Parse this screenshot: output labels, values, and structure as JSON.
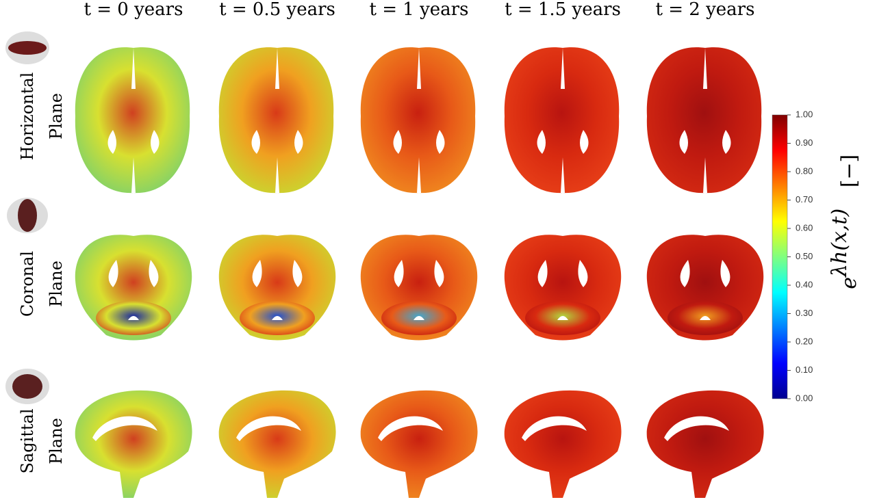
{
  "columns": [
    "t = 0 years",
    "t = 0.5 years",
    "t = 1 years",
    "t = 1.5 years",
    "t = 2 years"
  ],
  "rows": [
    [
      "Horizontal",
      "Plane"
    ],
    [
      "Coronal",
      "Plane"
    ],
    [
      "Sagittal",
      "Plane"
    ]
  ],
  "colorbar": {
    "range": [
      0,
      1
    ],
    "ticks": [
      {
        "value": 0,
        "label": "0.00"
      },
      {
        "value": 0.1,
        "label": "0.10"
      },
      {
        "value": 0.2,
        "label": "0.20"
      },
      {
        "value": 0.3,
        "label": "0.30"
      },
      {
        "value": 0.4,
        "label": "0.40"
      },
      {
        "value": 0.5,
        "label": "0.50"
      },
      {
        "value": 0.6,
        "label": "0.60"
      },
      {
        "value": 0.7,
        "label": "0.70"
      },
      {
        "value": 0.8,
        "label": "0.80"
      },
      {
        "value": 0.9,
        "label": "0.90"
      },
      {
        "value": 1,
        "label": "1.00"
      }
    ],
    "label": {
      "base": "e",
      "exponent": "λh(x,t)",
      "unit": "[−]"
    }
  }
}
